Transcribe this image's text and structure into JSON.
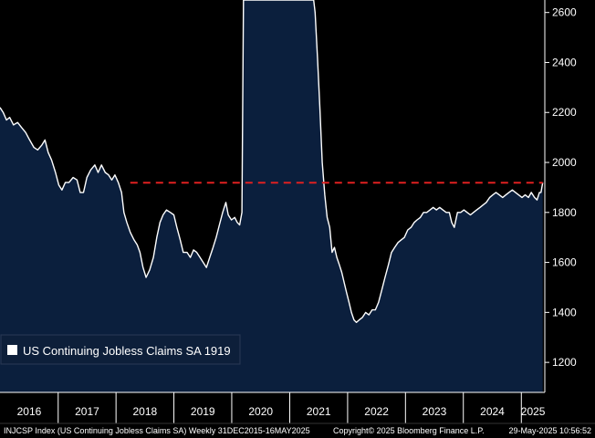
{
  "chart_data": {
    "type": "area",
    "title": "",
    "xlabel": "",
    "ylabel": "",
    "ylim": [
      1080,
      2650
    ],
    "xlim": [
      "2015-12-31",
      "2025-05-29"
    ],
    "y_axis_side": "right",
    "y_ticks": [
      1200,
      1400,
      1600,
      1800,
      2000,
      2200,
      2400,
      2600
    ],
    "x_ticks": [
      "2016",
      "2017",
      "2018",
      "2019",
      "2020",
      "2021",
      "2022",
      "2023",
      "2024",
      "2025"
    ],
    "grid": false,
    "legend": {
      "placement": "bottom-left",
      "label": "US Continuing Jobless Claims SA 1919"
    },
    "reference_line": {
      "value": 1919,
      "x_start": "2018-04-01",
      "x_end": "2025-05-16",
      "color": "#e02020",
      "style": "dashed"
    },
    "colors": {
      "area": "#0b1f3d",
      "line": "#ffffff",
      "background": "#000000",
      "legend_bg": "#0d1f3a"
    },
    "series": [
      {
        "name": "US Continuing Jobless Claims SA",
        "points": [
          [
            "2015-12-31",
            2220
          ],
          [
            "2016-01-20",
            2200
          ],
          [
            "2016-02-10",
            2170
          ],
          [
            "2016-03-01",
            2180
          ],
          [
            "2016-03-25",
            2150
          ],
          [
            "2016-04-20",
            2160
          ],
          [
            "2016-05-15",
            2140
          ],
          [
            "2016-06-10",
            2120
          ],
          [
            "2016-07-05",
            2090
          ],
          [
            "2016-08-01",
            2060
          ],
          [
            "2016-08-25",
            2050
          ],
          [
            "2016-09-20",
            2070
          ],
          [
            "2016-10-10",
            2090
          ],
          [
            "2016-10-30",
            2040
          ],
          [
            "2016-11-20",
            2010
          ],
          [
            "2016-12-15",
            1960
          ],
          [
            "2017-01-05",
            1910
          ],
          [
            "2017-01-25",
            1890
          ],
          [
            "2017-02-15",
            1920
          ],
          [
            "2017-03-10",
            1920
          ],
          [
            "2017-04-05",
            1940
          ],
          [
            "2017-04-30",
            1930
          ],
          [
            "2017-05-20",
            1880
          ],
          [
            "2017-06-10",
            1880
          ],
          [
            "2017-07-01",
            1940
          ],
          [
            "2017-07-25",
            1970
          ],
          [
            "2017-08-20",
            1990
          ],
          [
            "2017-09-10",
            1960
          ],
          [
            "2017-10-01",
            1990
          ],
          [
            "2017-10-25",
            1960
          ],
          [
            "2017-11-15",
            1950
          ],
          [
            "2017-12-05",
            1930
          ],
          [
            "2017-12-25",
            1950
          ],
          [
            "2018-01-15",
            1920
          ],
          [
            "2018-02-05",
            1880
          ],
          [
            "2018-02-20",
            1800
          ],
          [
            "2018-03-10",
            1760
          ],
          [
            "2018-04-01",
            1720
          ],
          [
            "2018-04-25",
            1690
          ],
          [
            "2018-05-15",
            1670
          ],
          [
            "2018-06-01",
            1640
          ],
          [
            "2018-06-20",
            1580
          ],
          [
            "2018-07-10",
            1540
          ],
          [
            "2018-08-01",
            1570
          ],
          [
            "2018-08-25",
            1620
          ],
          [
            "2018-09-15",
            1700
          ],
          [
            "2018-10-05",
            1760
          ],
          [
            "2018-10-25",
            1790
          ],
          [
            "2018-11-15",
            1810
          ],
          [
            "2018-12-10",
            1800
          ],
          [
            "2019-01-01",
            1790
          ],
          [
            "2019-01-20",
            1740
          ],
          [
            "2019-02-10",
            1690
          ],
          [
            "2019-03-01",
            1640
          ],
          [
            "2019-03-25",
            1640
          ],
          [
            "2019-04-15",
            1620
          ],
          [
            "2019-05-05",
            1650
          ],
          [
            "2019-05-25",
            1640
          ],
          [
            "2019-06-15",
            1620
          ],
          [
            "2019-07-05",
            1600
          ],
          [
            "2019-07-25",
            1580
          ],
          [
            "2019-08-15",
            1620
          ],
          [
            "2019-09-05",
            1660
          ],
          [
            "2019-09-25",
            1700
          ],
          [
            "2019-10-15",
            1750
          ],
          [
            "2019-11-05",
            1800
          ],
          [
            "2019-11-25",
            1840
          ],
          [
            "2019-12-10",
            1790
          ],
          [
            "2019-12-30",
            1770
          ],
          [
            "2020-01-20",
            1780
          ],
          [
            "2020-02-05",
            1760
          ],
          [
            "2020-02-20",
            1750
          ],
          [
            "2020-03-05",
            1800
          ],
          [
            "2020-03-15",
            2650
          ],
          [
            "2021-06-01",
            2650
          ],
          [
            "2021-06-10",
            2600
          ],
          [
            "2021-06-25",
            2420
          ],
          [
            "2021-07-10",
            2220
          ],
          [
            "2021-07-25",
            2000
          ],
          [
            "2021-08-10",
            1870
          ],
          [
            "2021-08-25",
            1780
          ],
          [
            "2021-09-10",
            1740
          ],
          [
            "2021-09-25",
            1640
          ],
          [
            "2021-10-10",
            1660
          ],
          [
            "2021-10-25",
            1620
          ],
          [
            "2021-11-10",
            1590
          ],
          [
            "2021-11-25",
            1560
          ],
          [
            "2021-12-10",
            1520
          ],
          [
            "2021-12-25",
            1480
          ],
          [
            "2022-01-10",
            1440
          ],
          [
            "2022-01-25",
            1400
          ],
          [
            "2022-02-10",
            1370
          ],
          [
            "2022-02-25",
            1360
          ],
          [
            "2022-03-15",
            1370
          ],
          [
            "2022-04-05",
            1380
          ],
          [
            "2022-04-25",
            1400
          ],
          [
            "2022-05-15",
            1390
          ],
          [
            "2022-06-05",
            1410
          ],
          [
            "2022-06-25",
            1410
          ],
          [
            "2022-07-15",
            1440
          ],
          [
            "2022-08-05",
            1490
          ],
          [
            "2022-08-25",
            1540
          ],
          [
            "2022-09-15",
            1590
          ],
          [
            "2022-10-05",
            1640
          ],
          [
            "2022-10-25",
            1660
          ],
          [
            "2022-11-15",
            1680
          ],
          [
            "2022-12-05",
            1690
          ],
          [
            "2022-12-25",
            1700
          ],
          [
            "2023-01-15",
            1730
          ],
          [
            "2023-02-05",
            1740
          ],
          [
            "2023-02-25",
            1760
          ],
          [
            "2023-03-15",
            1770
          ],
          [
            "2023-04-05",
            1780
          ],
          [
            "2023-04-25",
            1800
          ],
          [
            "2023-05-15",
            1800
          ],
          [
            "2023-06-05",
            1810
          ],
          [
            "2023-06-25",
            1820
          ],
          [
            "2023-07-15",
            1810
          ],
          [
            "2023-08-05",
            1820
          ],
          [
            "2023-08-25",
            1810
          ],
          [
            "2023-09-15",
            1800
          ],
          [
            "2023-10-05",
            1800
          ],
          [
            "2023-10-20",
            1760
          ],
          [
            "2023-11-05",
            1740
          ],
          [
            "2023-11-25",
            1800
          ],
          [
            "2023-12-15",
            1800
          ],
          [
            "2024-01-05",
            1810
          ],
          [
            "2024-01-25",
            1800
          ],
          [
            "2024-02-15",
            1790
          ],
          [
            "2024-03-05",
            1800
          ],
          [
            "2024-03-25",
            1810
          ],
          [
            "2024-04-15",
            1820
          ],
          [
            "2024-05-05",
            1830
          ],
          [
            "2024-05-25",
            1840
          ],
          [
            "2024-06-15",
            1860
          ],
          [
            "2024-07-05",
            1870
          ],
          [
            "2024-07-25",
            1880
          ],
          [
            "2024-08-15",
            1870
          ],
          [
            "2024-09-05",
            1860
          ],
          [
            "2024-09-25",
            1870
          ],
          [
            "2024-10-15",
            1880
          ],
          [
            "2024-11-05",
            1890
          ],
          [
            "2024-11-25",
            1880
          ],
          [
            "2024-12-15",
            1870
          ],
          [
            "2025-01-05",
            1860
          ],
          [
            "2025-01-25",
            1870
          ],
          [
            "2025-02-15",
            1860
          ],
          [
            "2025-03-05",
            1880
          ],
          [
            "2025-03-25",
            1860
          ],
          [
            "2025-04-10",
            1850
          ],
          [
            "2025-04-25",
            1880
          ],
          [
            "2025-05-05",
            1880
          ],
          [
            "2025-05-16",
            1919
          ]
        ]
      }
    ]
  },
  "footer": {
    "left": "INJCSP Index (US Continuing Jobless Claims SA)  Weekly 31DEC2015-16MAY2025",
    "center": "Copyright© 2025 Bloomberg Finance L.P.",
    "right": "29-May-2025 10:56:52"
  }
}
